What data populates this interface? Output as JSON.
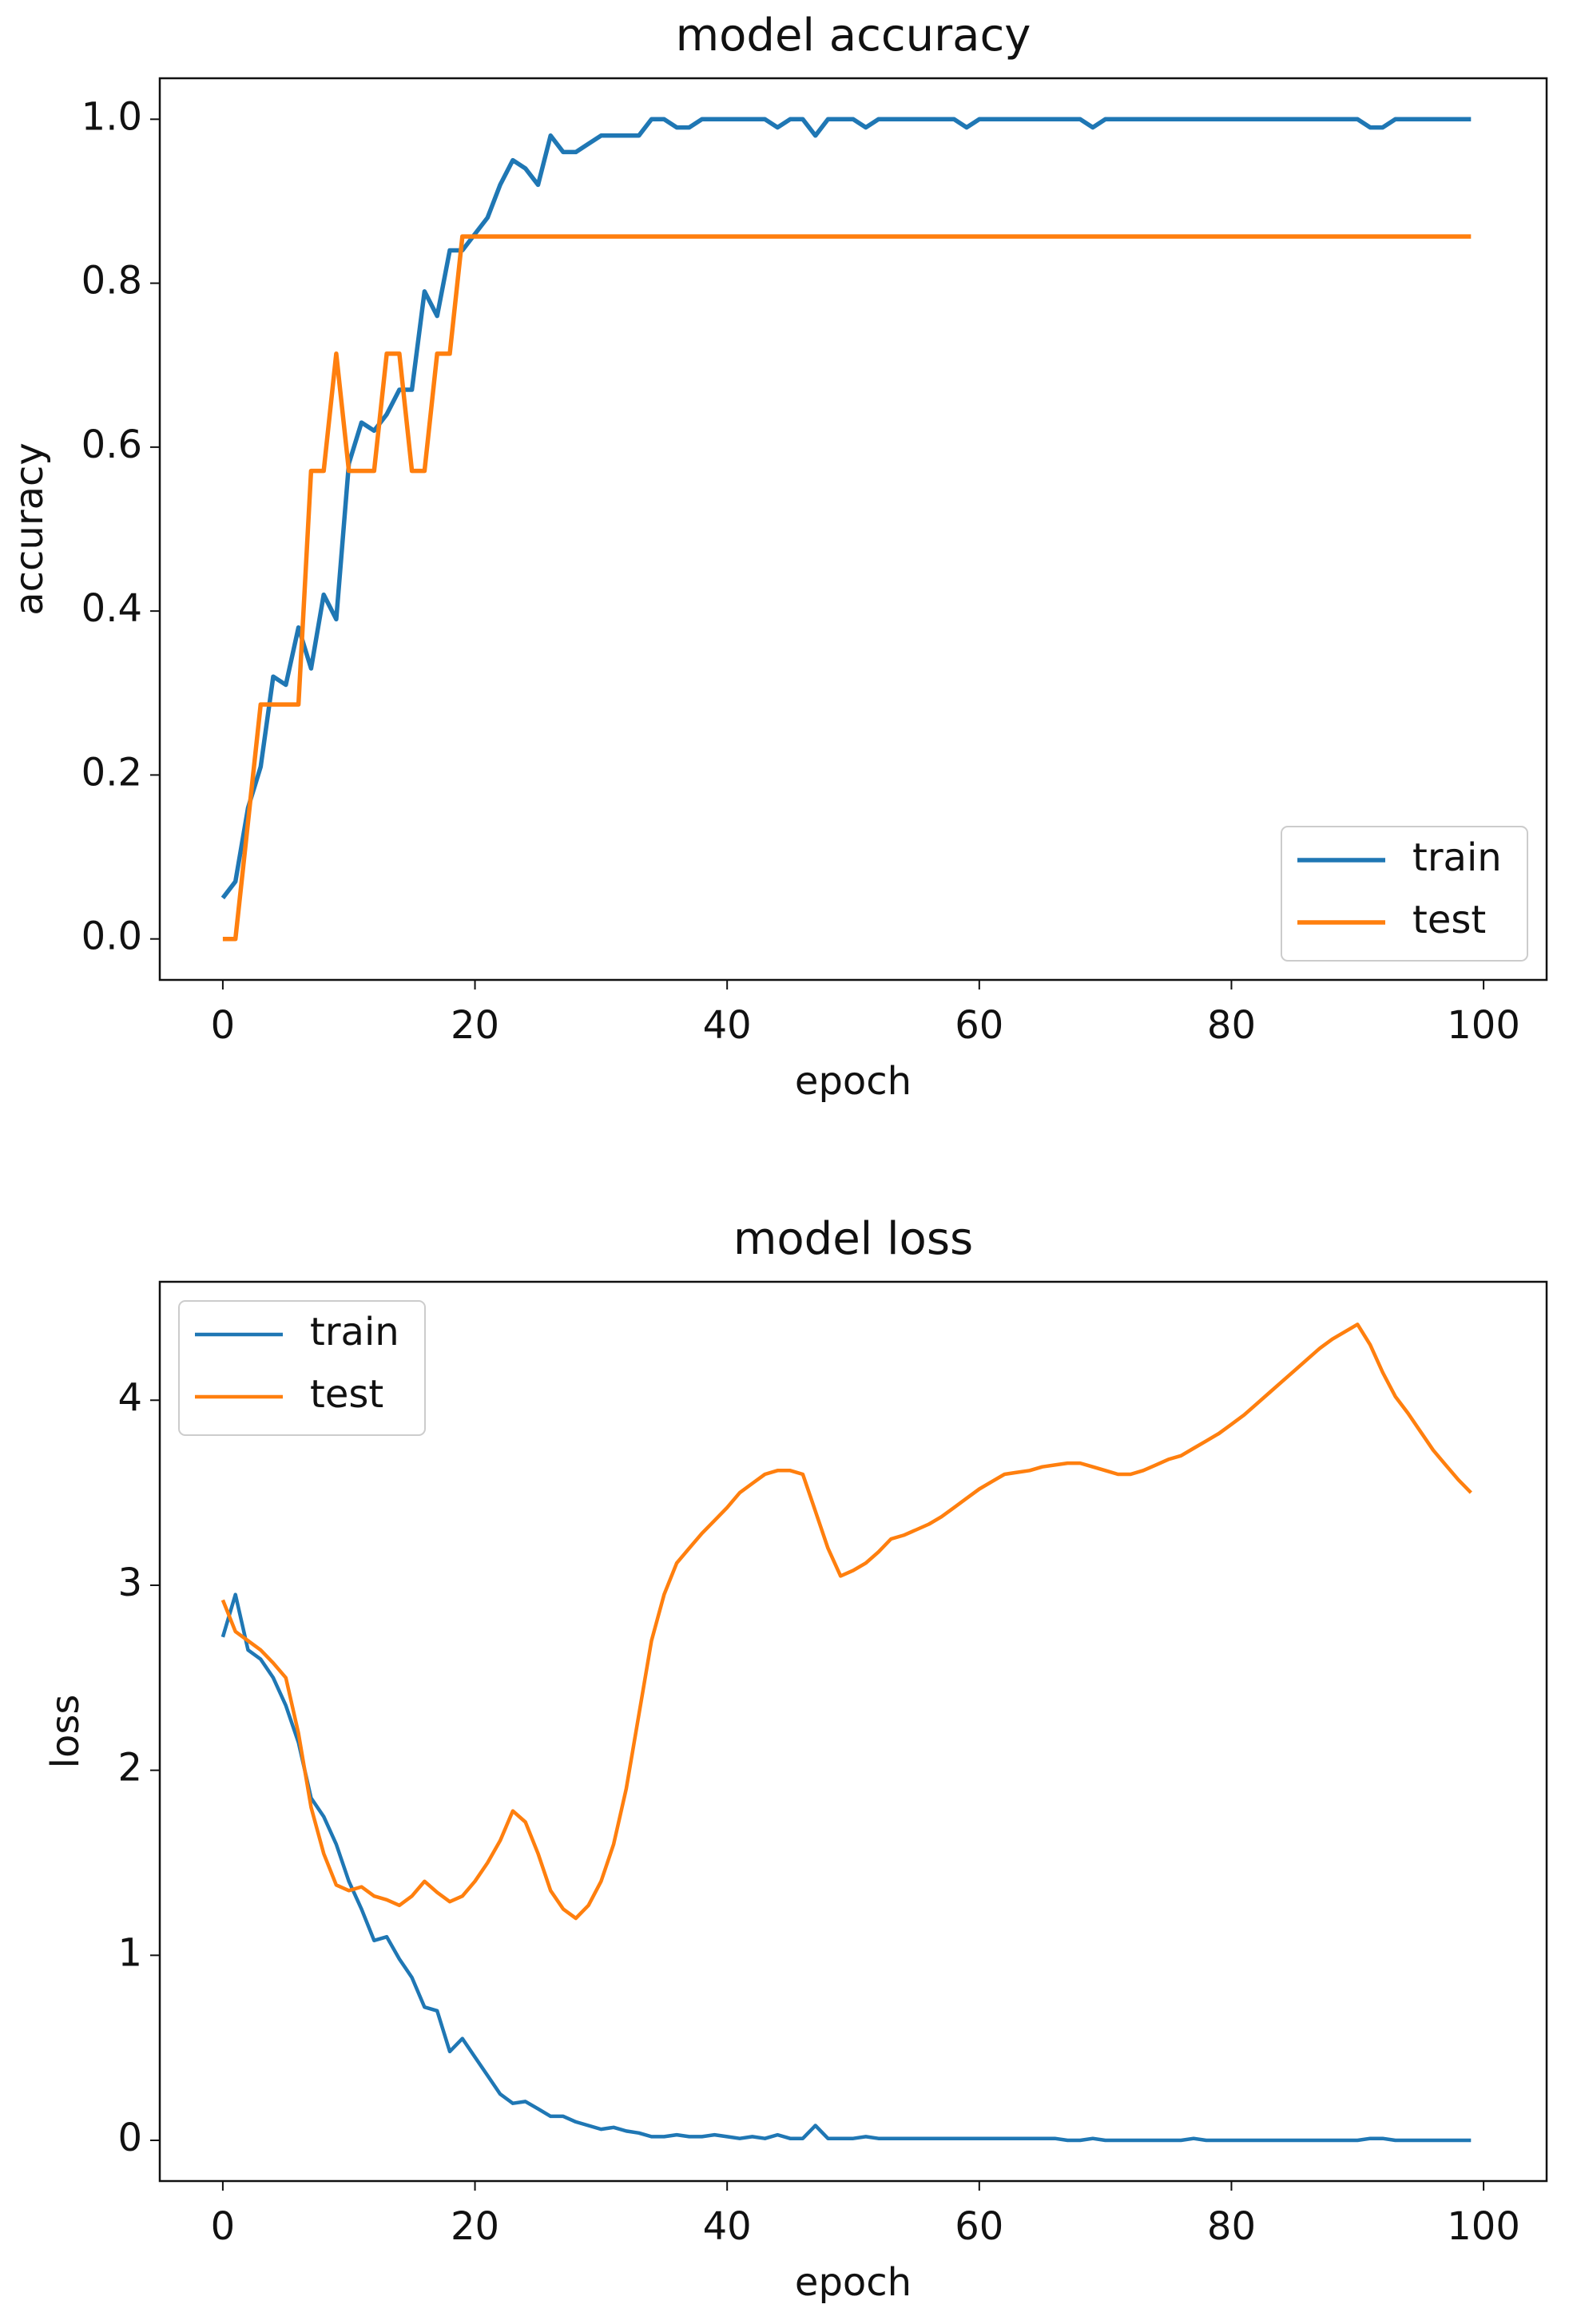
{
  "chart_data": [
    {
      "type": "line",
      "title": "model accuracy",
      "xlabel": "epoch",
      "ylabel": "accuracy",
      "x": [
        0,
        1,
        2,
        3,
        4,
        5,
        6,
        7,
        8,
        9,
        10,
        11,
        12,
        13,
        14,
        15,
        16,
        17,
        18,
        19,
        20,
        21,
        22,
        23,
        24,
        25,
        26,
        27,
        28,
        29,
        30,
        31,
        32,
        33,
        34,
        35,
        36,
        37,
        38,
        39,
        40,
        41,
        42,
        43,
        44,
        45,
        46,
        47,
        48,
        49,
        50,
        51,
        52,
        53,
        54,
        55,
        56,
        57,
        58,
        59,
        60,
        61,
        62,
        63,
        64,
        65,
        66,
        67,
        68,
        69,
        70,
        71,
        72,
        73,
        74,
        75,
        76,
        77,
        78,
        79,
        80,
        81,
        82,
        83,
        84,
        85,
        86,
        87,
        88,
        89,
        90,
        91,
        92,
        93,
        94,
        95,
        96,
        97,
        98,
        99
      ],
      "xlim": [
        -5,
        105
      ],
      "xticks": [
        0,
        20,
        40,
        60,
        80,
        100
      ],
      "ylim": [
        -0.05,
        1.05
      ],
      "yticks": [
        {
          "value": 0,
          "label": "0.0"
        },
        0.2,
        0.4,
        0.6,
        0.8,
        {
          "value": 1,
          "label": "1.0"
        }
      ],
      "legend": "lower right",
      "series": [
        {
          "name": "train",
          "color": "#1f77b4",
          "values": [
            0.05,
            0.07,
            0.16,
            0.21,
            0.32,
            0.31,
            0.38,
            0.33,
            0.42,
            0.39,
            0.58,
            0.63,
            0.62,
            0.64,
            0.67,
            0.67,
            0.79,
            0.76,
            0.84,
            0.84,
            0.86,
            0.88,
            0.92,
            0.95,
            0.94,
            0.92,
            0.98,
            0.96,
            0.96,
            0.97,
            0.98,
            0.98,
            0.98,
            0.98,
            1.0,
            1.0,
            0.99,
            0.99,
            1.0,
            1.0,
            1.0,
            1.0,
            1.0,
            1.0,
            0.99,
            1.0,
            1.0,
            0.98,
            1.0,
            1.0,
            1.0,
            0.99,
            1.0,
            1.0,
            1.0,
            1.0,
            1.0,
            1.0,
            1.0,
            0.99,
            1.0,
            1.0,
            1.0,
            1.0,
            1.0,
            1.0,
            1.0,
            1.0,
            1.0,
            0.99,
            1.0,
            1.0,
            1.0,
            1.0,
            1.0,
            1.0,
            1.0,
            1.0,
            1.0,
            1.0,
            1.0,
            1.0,
            1.0,
            1.0,
            1.0,
            1.0,
            1.0,
            1.0,
            1.0,
            1.0,
            1.0,
            0.99,
            0.99,
            1.0,
            1.0,
            1.0,
            1.0,
            1.0,
            1.0,
            1.0
          ]
        },
        {
          "name": "test",
          "color": "#ff7f0e",
          "values": [
            0.0,
            0.0,
            0.143,
            0.286,
            0.286,
            0.286,
            0.286,
            0.571,
            0.571,
            0.714,
            0.571,
            0.571,
            0.571,
            0.714,
            0.714,
            0.571,
            0.571,
            0.714,
            0.714,
            0.857,
            0.857,
            0.857,
            0.857,
            0.857,
            0.857,
            0.857,
            0.857,
            0.857,
            0.857,
            0.857,
            0.857,
            0.857,
            0.857,
            0.857,
            0.857,
            0.857,
            0.857,
            0.857,
            0.857,
            0.857,
            0.857,
            0.857,
            0.857,
            0.857,
            0.857,
            0.857,
            0.857,
            0.857,
            0.857,
            0.857,
            0.857,
            0.857,
            0.857,
            0.857,
            0.857,
            0.857,
            0.857,
            0.857,
            0.857,
            0.857,
            0.857,
            0.857,
            0.857,
            0.857,
            0.857,
            0.857,
            0.857,
            0.857,
            0.857,
            0.857,
            0.857,
            0.857,
            0.857,
            0.857,
            0.857,
            0.857,
            0.857,
            0.857,
            0.857,
            0.857,
            0.857,
            0.857,
            0.857,
            0.857,
            0.857,
            0.857,
            0.857,
            0.857,
            0.857,
            0.857,
            0.857,
            0.857,
            0.857,
            0.857,
            0.857,
            0.857,
            0.857,
            0.857,
            0.857,
            0.857
          ]
        }
      ]
    },
    {
      "type": "line",
      "title": "model loss",
      "xlabel": "epoch",
      "ylabel": "loss",
      "x": [
        0,
        1,
        2,
        3,
        4,
        5,
        6,
        7,
        8,
        9,
        10,
        11,
        12,
        13,
        14,
        15,
        16,
        17,
        18,
        19,
        20,
        21,
        22,
        23,
        24,
        25,
        26,
        27,
        28,
        29,
        30,
        31,
        32,
        33,
        34,
        35,
        36,
        37,
        38,
        39,
        40,
        41,
        42,
        43,
        44,
        45,
        46,
        47,
        48,
        49,
        50,
        51,
        52,
        53,
        54,
        55,
        56,
        57,
        58,
        59,
        60,
        61,
        62,
        63,
        64,
        65,
        66,
        67,
        68,
        69,
        70,
        71,
        72,
        73,
        74,
        75,
        76,
        77,
        78,
        79,
        80,
        81,
        82,
        83,
        84,
        85,
        86,
        87,
        88,
        89,
        90,
        91,
        92,
        93,
        94,
        95,
        96,
        97,
        98,
        99
      ],
      "xlim": [
        -5,
        105
      ],
      "xticks": [
        0,
        20,
        40,
        60,
        80,
        100
      ],
      "ylim": [
        -0.22,
        4.64
      ],
      "yticks": [
        0,
        1,
        2,
        3,
        4
      ],
      "legend": "upper left",
      "series": [
        {
          "name": "train",
          "color": "#1f77b4",
          "values": [
            2.72,
            2.95,
            2.65,
            2.6,
            2.5,
            2.35,
            2.15,
            1.85,
            1.75,
            1.6,
            1.4,
            1.25,
            1.08,
            1.1,
            0.98,
            0.88,
            0.72,
            0.7,
            0.48,
            0.55,
            0.45,
            0.35,
            0.25,
            0.2,
            0.21,
            0.17,
            0.13,
            0.13,
            0.1,
            0.08,
            0.06,
            0.07,
            0.05,
            0.04,
            0.02,
            0.02,
            0.03,
            0.02,
            0.02,
            0.03,
            0.02,
            0.01,
            0.02,
            0.01,
            0.03,
            0.01,
            0.01,
            0.08,
            0.01,
            0.01,
            0.01,
            0.02,
            0.01,
            0.01,
            0.01,
            0.01,
            0.01,
            0.01,
            0.01,
            0.01,
            0.01,
            0.01,
            0.01,
            0.01,
            0.01,
            0.01,
            0.01,
            0.0,
            0.0,
            0.01,
            0.0,
            0.0,
            0.0,
            0.0,
            0.0,
            0.0,
            0.0,
            0.01,
            0.0,
            0.0,
            0.0,
            0.0,
            0.0,
            0.0,
            0.0,
            0.0,
            0.0,
            0.0,
            0.0,
            0.0,
            0.0,
            0.01,
            0.01,
            0.0,
            0.0,
            0.0,
            0.0,
            0.0,
            0.0,
            0.0
          ]
        },
        {
          "name": "test",
          "color": "#ff7f0e",
          "values": [
            2.92,
            2.75,
            2.7,
            2.65,
            2.58,
            2.5,
            2.2,
            1.8,
            1.55,
            1.38,
            1.35,
            1.37,
            1.32,
            1.3,
            1.27,
            1.32,
            1.4,
            1.34,
            1.29,
            1.32,
            1.4,
            1.5,
            1.62,
            1.78,
            1.72,
            1.55,
            1.35,
            1.25,
            1.2,
            1.27,
            1.4,
            1.6,
            1.9,
            2.3,
            2.7,
            2.95,
            3.12,
            3.2,
            3.28,
            3.35,
            3.42,
            3.5,
            3.55,
            3.6,
            3.62,
            3.62,
            3.6,
            3.4,
            3.2,
            3.05,
            3.08,
            3.12,
            3.18,
            3.25,
            3.27,
            3.3,
            3.33,
            3.37,
            3.42,
            3.47,
            3.52,
            3.56,
            3.6,
            3.61,
            3.62,
            3.64,
            3.65,
            3.66,
            3.66,
            3.64,
            3.62,
            3.6,
            3.6,
            3.62,
            3.65,
            3.68,
            3.7,
            3.74,
            3.78,
            3.82,
            3.87,
            3.92,
            3.98,
            4.04,
            4.1,
            4.16,
            4.22,
            4.28,
            4.33,
            4.37,
            4.41,
            4.3,
            4.15,
            4.02,
            3.93,
            3.83,
            3.73,
            3.65,
            3.57,
            3.5
          ]
        }
      ]
    }
  ]
}
